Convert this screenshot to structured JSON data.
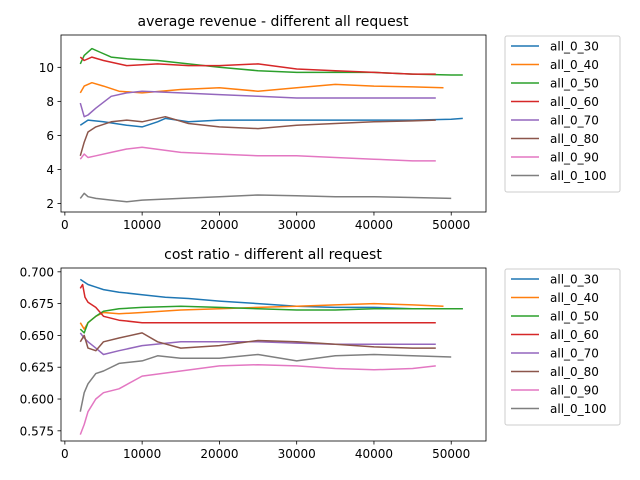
{
  "colors": [
    "#1f77b4",
    "#ff7f0e",
    "#2ca02c",
    "#d62728",
    "#9467bd",
    "#8c564b",
    "#e377c2",
    "#7f7f7f"
  ],
  "chart_data": [
    {
      "type": "line",
      "title": "average revenue - different all request",
      "xlabel": "",
      "ylabel": "",
      "xlim": [
        -500,
        54500
      ],
      "ylim": [
        1.5,
        11.9
      ],
      "xticks": [
        0,
        10000,
        20000,
        30000,
        40000,
        50000
      ],
      "yticks": [
        2,
        4,
        6,
        8,
        10
      ],
      "grid": false,
      "legend": "outside-right",
      "series": [
        {
          "name": "all_0_30",
          "x": [
            2000,
            3000,
            5000,
            8000,
            10000,
            12000,
            13000,
            16000,
            20000,
            25000,
            30000,
            35000,
            40000,
            45000,
            50000,
            51500
          ],
          "values": [
            6.6,
            6.9,
            6.8,
            6.6,
            6.5,
            6.8,
            7.0,
            6.8,
            6.9,
            6.9,
            6.9,
            6.9,
            6.9,
            6.9,
            6.95,
            7.0
          ]
        },
        {
          "name": "all_0_40",
          "x": [
            2000,
            2500,
            3500,
            5000,
            7000,
            10000,
            15000,
            20000,
            25000,
            30000,
            35000,
            40000,
            45000,
            49000
          ],
          "values": [
            8.5,
            8.9,
            9.1,
            8.9,
            8.6,
            8.5,
            8.7,
            8.8,
            8.6,
            8.8,
            9.0,
            8.9,
            8.85,
            8.8
          ]
        },
        {
          "name": "all_0_50",
          "x": [
            2000,
            2500,
            3500,
            4500,
            6000,
            8000,
            12000,
            16000,
            20000,
            25000,
            30000,
            35000,
            40000,
            45000,
            50000,
            51500
          ],
          "values": [
            10.2,
            10.7,
            11.1,
            10.9,
            10.6,
            10.5,
            10.4,
            10.2,
            10.0,
            9.8,
            9.7,
            9.7,
            9.7,
            9.6,
            9.55,
            9.55
          ]
        },
        {
          "name": "all_0_60",
          "x": [
            2000,
            2500,
            3500,
            5000,
            8000,
            12000,
            16000,
            20000,
            25000,
            30000,
            35000,
            40000,
            45000,
            48000
          ],
          "values": [
            10.6,
            10.4,
            10.6,
            10.4,
            10.1,
            10.2,
            10.1,
            10.1,
            10.2,
            9.9,
            9.8,
            9.7,
            9.6,
            9.6
          ]
        },
        {
          "name": "all_0_70",
          "x": [
            2000,
            2500,
            3000,
            4000,
            6000,
            8000,
            10000,
            15000,
            20000,
            25000,
            30000,
            35000,
            40000,
            45000,
            48000
          ],
          "values": [
            7.9,
            7.1,
            7.2,
            7.6,
            8.3,
            8.5,
            8.6,
            8.5,
            8.4,
            8.3,
            8.2,
            8.2,
            8.2,
            8.2,
            8.2
          ]
        },
        {
          "name": "all_0_80",
          "x": [
            2000,
            2500,
            3000,
            4000,
            6000,
            8000,
            10000,
            13000,
            16000,
            20000,
            25000,
            30000,
            35000,
            40000,
            45000,
            48000
          ],
          "values": [
            4.8,
            5.6,
            6.2,
            6.5,
            6.8,
            6.9,
            6.8,
            7.1,
            6.7,
            6.5,
            6.4,
            6.6,
            6.7,
            6.8,
            6.85,
            6.9
          ]
        },
        {
          "name": "all_0_90",
          "x": [
            2000,
            2500,
            3000,
            4000,
            6000,
            8000,
            10000,
            15000,
            20000,
            25000,
            30000,
            35000,
            40000,
            45000,
            48000
          ],
          "values": [
            4.6,
            4.9,
            4.7,
            4.8,
            5.0,
            5.2,
            5.3,
            5.0,
            4.9,
            4.8,
            4.8,
            4.7,
            4.6,
            4.5,
            4.5
          ]
        },
        {
          "name": "all_0_100",
          "x": [
            2000,
            2500,
            3000,
            4000,
            6000,
            8000,
            10000,
            15000,
            20000,
            25000,
            30000,
            35000,
            40000,
            45000,
            50000
          ],
          "values": [
            2.3,
            2.6,
            2.4,
            2.3,
            2.2,
            2.1,
            2.2,
            2.3,
            2.4,
            2.5,
            2.45,
            2.4,
            2.4,
            2.35,
            2.3
          ]
        }
      ]
    },
    {
      "type": "line",
      "title": "cost ratio - different all request",
      "xlabel": "",
      "ylabel": "",
      "xlim": [
        -500,
        54500
      ],
      "ylim": [
        0.567,
        0.703
      ],
      "xticks": [
        0,
        10000,
        20000,
        30000,
        40000,
        50000
      ],
      "yticks": [
        0.575,
        0.6,
        0.625,
        0.65,
        0.675,
        0.7
      ],
      "ytick_labels": [
        "0.575",
        "0.600",
        "0.625",
        "0.650",
        "0.675",
        "0.700"
      ],
      "grid": false,
      "legend": "outside-right",
      "series": [
        {
          "name": "all_0_30",
          "x": [
            2000,
            2500,
            3000,
            4000,
            5000,
            7000,
            10000,
            13000,
            16000,
            20000,
            25000,
            30000,
            35000,
            40000,
            45000,
            50000,
            51500
          ],
          "values": [
            0.694,
            0.692,
            0.69,
            0.688,
            0.686,
            0.684,
            0.682,
            0.68,
            0.679,
            0.677,
            0.675,
            0.673,
            0.672,
            0.672,
            0.671,
            0.671,
            0.671
          ]
        },
        {
          "name": "all_0_40",
          "x": [
            2000,
            2500,
            3000,
            4000,
            5000,
            7000,
            10000,
            15000,
            20000,
            25000,
            30000,
            35000,
            40000,
            45000,
            49000
          ],
          "values": [
            0.66,
            0.655,
            0.66,
            0.665,
            0.668,
            0.667,
            0.668,
            0.67,
            0.671,
            0.672,
            0.673,
            0.674,
            0.675,
            0.674,
            0.673
          ]
        },
        {
          "name": "all_0_50",
          "x": [
            2000,
            2500,
            3000,
            4000,
            5000,
            7000,
            10000,
            15000,
            20000,
            25000,
            30000,
            35000,
            40000,
            45000,
            51500
          ],
          "values": [
            0.655,
            0.652,
            0.66,
            0.665,
            0.669,
            0.671,
            0.672,
            0.673,
            0.672,
            0.671,
            0.67,
            0.67,
            0.671,
            0.671,
            0.671
          ]
        },
        {
          "name": "all_0_60",
          "x": [
            2000,
            2300,
            2600,
            3000,
            4000,
            5000,
            7000,
            10000,
            15000,
            20000,
            25000,
            30000,
            35000,
            40000,
            45000,
            48000
          ],
          "values": [
            0.687,
            0.69,
            0.68,
            0.676,
            0.672,
            0.665,
            0.662,
            0.66,
            0.66,
            0.66,
            0.66,
            0.66,
            0.66,
            0.66,
            0.66,
            0.66
          ]
        },
        {
          "name": "all_0_70",
          "x": [
            2000,
            2500,
            3000,
            4000,
            5000,
            7000,
            10000,
            15000,
            20000,
            25000,
            30000,
            35000,
            40000,
            45000,
            48000
          ],
          "values": [
            0.652,
            0.648,
            0.645,
            0.64,
            0.635,
            0.638,
            0.642,
            0.645,
            0.645,
            0.645,
            0.644,
            0.643,
            0.643,
            0.643,
            0.643
          ]
        },
        {
          "name": "all_0_80",
          "x": [
            2000,
            2500,
            3000,
            4000,
            5000,
            7000,
            10000,
            12000,
            15000,
            20000,
            25000,
            30000,
            35000,
            40000,
            45000,
            48000
          ],
          "values": [
            0.645,
            0.65,
            0.64,
            0.638,
            0.645,
            0.648,
            0.652,
            0.645,
            0.64,
            0.642,
            0.646,
            0.645,
            0.643,
            0.641,
            0.64,
            0.64
          ]
        },
        {
          "name": "all_0_90",
          "x": [
            2000,
            2500,
            3000,
            4000,
            5000,
            7000,
            10000,
            15000,
            20000,
            25000,
            30000,
            35000,
            40000,
            45000,
            48000
          ],
          "values": [
            0.572,
            0.58,
            0.59,
            0.6,
            0.605,
            0.608,
            0.618,
            0.622,
            0.626,
            0.627,
            0.626,
            0.624,
            0.623,
            0.624,
            0.626
          ]
        },
        {
          "name": "all_0_100",
          "x": [
            2000,
            2500,
            3000,
            4000,
            5000,
            7000,
            10000,
            12000,
            15000,
            20000,
            25000,
            30000,
            35000,
            40000,
            45000,
            50000
          ],
          "values": [
            0.59,
            0.605,
            0.612,
            0.62,
            0.622,
            0.628,
            0.63,
            0.634,
            0.632,
            0.632,
            0.635,
            0.63,
            0.634,
            0.635,
            0.634,
            0.633
          ]
        }
      ]
    }
  ]
}
